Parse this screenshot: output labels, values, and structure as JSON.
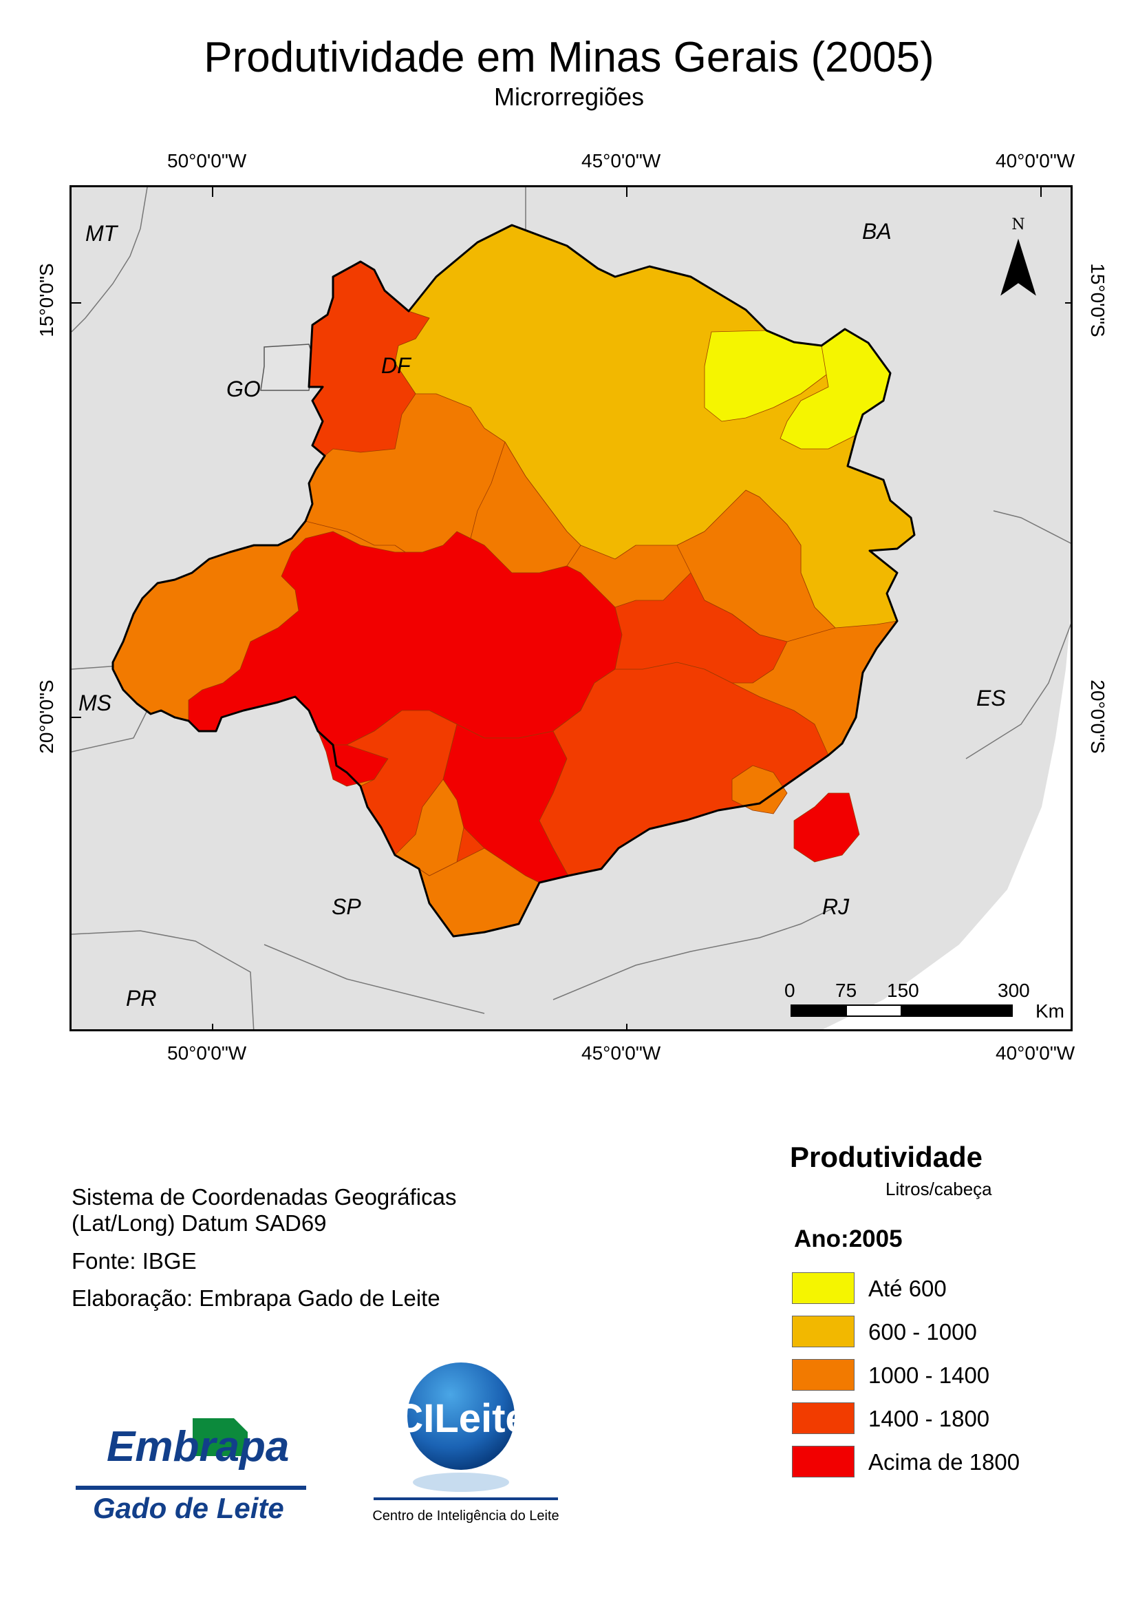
{
  "title": "Produtividade em Minas Gerais (2005)",
  "subtitle": "Microrregiões",
  "graticule": {
    "longitudes": [
      "50°0'0\"W",
      "45°0'0\"W",
      "40°0'0\"W"
    ],
    "latitudes": [
      "15°0'0\"S",
      "20°0'0\"S"
    ]
  },
  "states": [
    "MT",
    "BA",
    "GO",
    "DF",
    "MS",
    "ES",
    "SP",
    "RJ",
    "PR"
  ],
  "north_arrow": "N",
  "scale_bar": {
    "labels": [
      "0",
      "75",
      "150",
      "300"
    ],
    "unit": "Km"
  },
  "info": {
    "coord_system_line1": "Sistema de Coordenadas Geográficas",
    "coord_system_line2": "(Lat/Long) Datum SAD69",
    "source": "Fonte: IBGE",
    "credit": "Elaboração: Embrapa Gado de Leite"
  },
  "legend": {
    "title": "Produtividade",
    "unit": "Litros/cabeça",
    "year": "Ano:2005",
    "classes": [
      {
        "label": "Até 600",
        "color": "#f5f500"
      },
      {
        "label": "600 - 1000",
        "color": "#f2b800"
      },
      {
        "label": "1000 - 1400",
        "color": "#f27a00"
      },
      {
        "label": "1400 - 1800",
        "color": "#f23c00"
      },
      {
        "label": "Acima de 1800",
        "color": "#f20000"
      }
    ]
  },
  "logos": {
    "embrapa_name": "Embrapa",
    "embrapa_unit": "Gado de Leite",
    "cileite_name": "CILeite",
    "cileite_caption": "Centro de Inteligência do Leite"
  }
}
